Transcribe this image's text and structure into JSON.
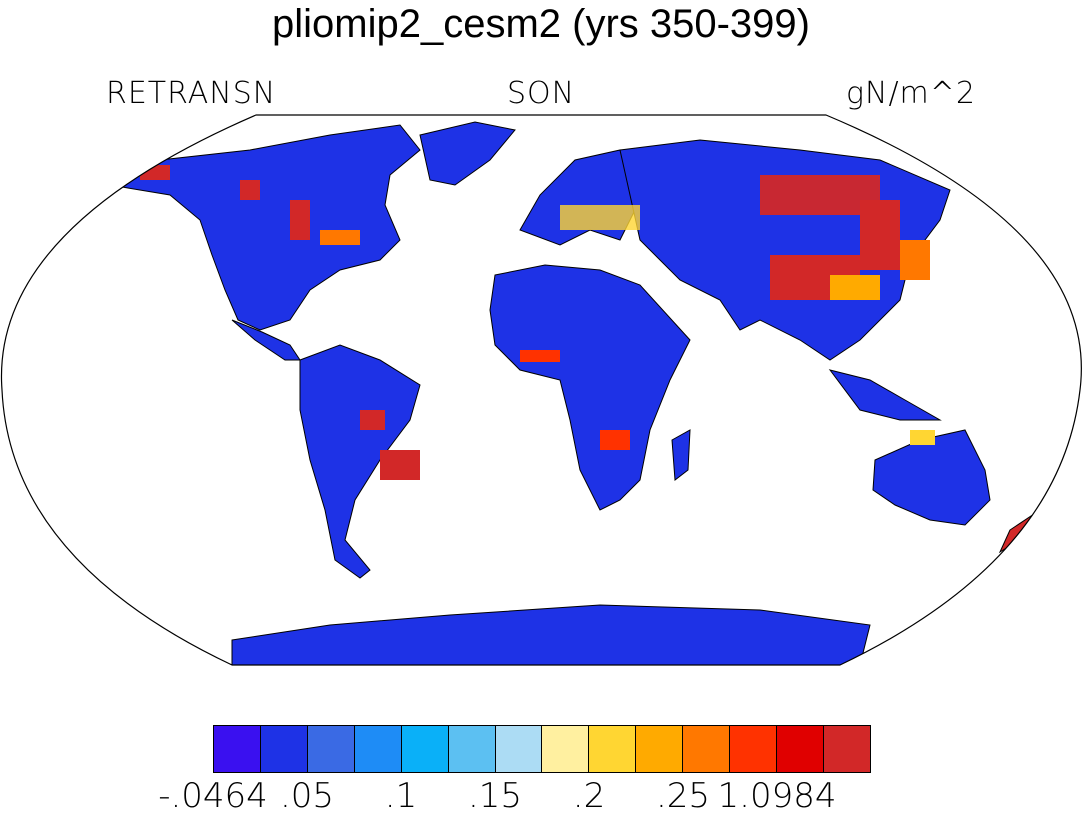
{
  "title": "pliomip2_cesm2 (yrs 350-399)",
  "subtitle": {
    "left": "RETRANSN",
    "center": "SON",
    "right": "gN/m^2"
  },
  "colorbar": {
    "colors": [
      "#3a10f0",
      "#1e32e6",
      "#3a6ae4",
      "#1e8cf6",
      "#0ab0f8",
      "#5cc0f2",
      "#acdcf4",
      "#fff0a0",
      "#ffd632",
      "#ffaa00",
      "#ff7800",
      "#ff3200",
      "#e00000",
      "#d22828"
    ],
    "labels": [
      "-.0464",
      ".05",
      ".1",
      ".15",
      ".2",
      ".25",
      "1.0984"
    ]
  },
  "map": {
    "projection": "robinson",
    "ocean_color": "#ffffff",
    "land_base_color": "#1e32e6"
  }
}
